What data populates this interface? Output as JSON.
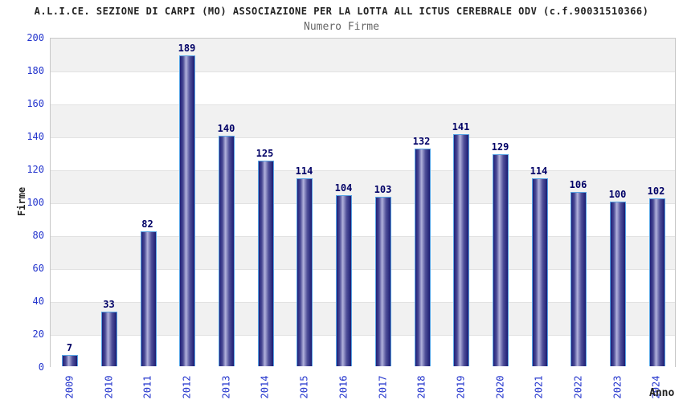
{
  "chart_data": {
    "type": "bar",
    "title": "A.L.I.CE. SEZIONE DI CARPI (MO) ASSOCIAZIONE PER LA LOTTA ALL ICTUS CEREBRALE ODV (c.f.90031510366)",
    "subtitle": "Numero Firme",
    "categories": [
      "2009",
      "2010",
      "2011",
      "2012",
      "2013",
      "2014",
      "2015",
      "2016",
      "2017",
      "2018",
      "2019",
      "2020",
      "2021",
      "2022",
      "2023",
      "2024"
    ],
    "values": [
      7,
      33,
      82,
      189,
      140,
      125,
      114,
      104,
      103,
      132,
      141,
      129,
      114,
      106,
      100,
      102
    ],
    "xlabel": "Anno",
    "ylabel": "Firme",
    "ylim": [
      0,
      200
    ],
    "ytick_step": 20,
    "yticks": [
      0,
      20,
      40,
      60,
      80,
      100,
      120,
      140,
      160,
      180,
      200
    ],
    "grid": "horizontal alternating bands with gridlines at each 20-step",
    "legend_position": "none",
    "value_labels_shown": true,
    "colors": {
      "bar_edge": "#58a4e4",
      "bar_gradient_dark": "#1e1e78",
      "bar_gradient_light": "#b2b2dc",
      "axis_tick_label": "#2233cc",
      "value_label": "#000066",
      "band_gray": "#f1f1f1",
      "band_white": "#ffffff",
      "title_color": "#222222",
      "subtitle_color": "#666666"
    }
  }
}
